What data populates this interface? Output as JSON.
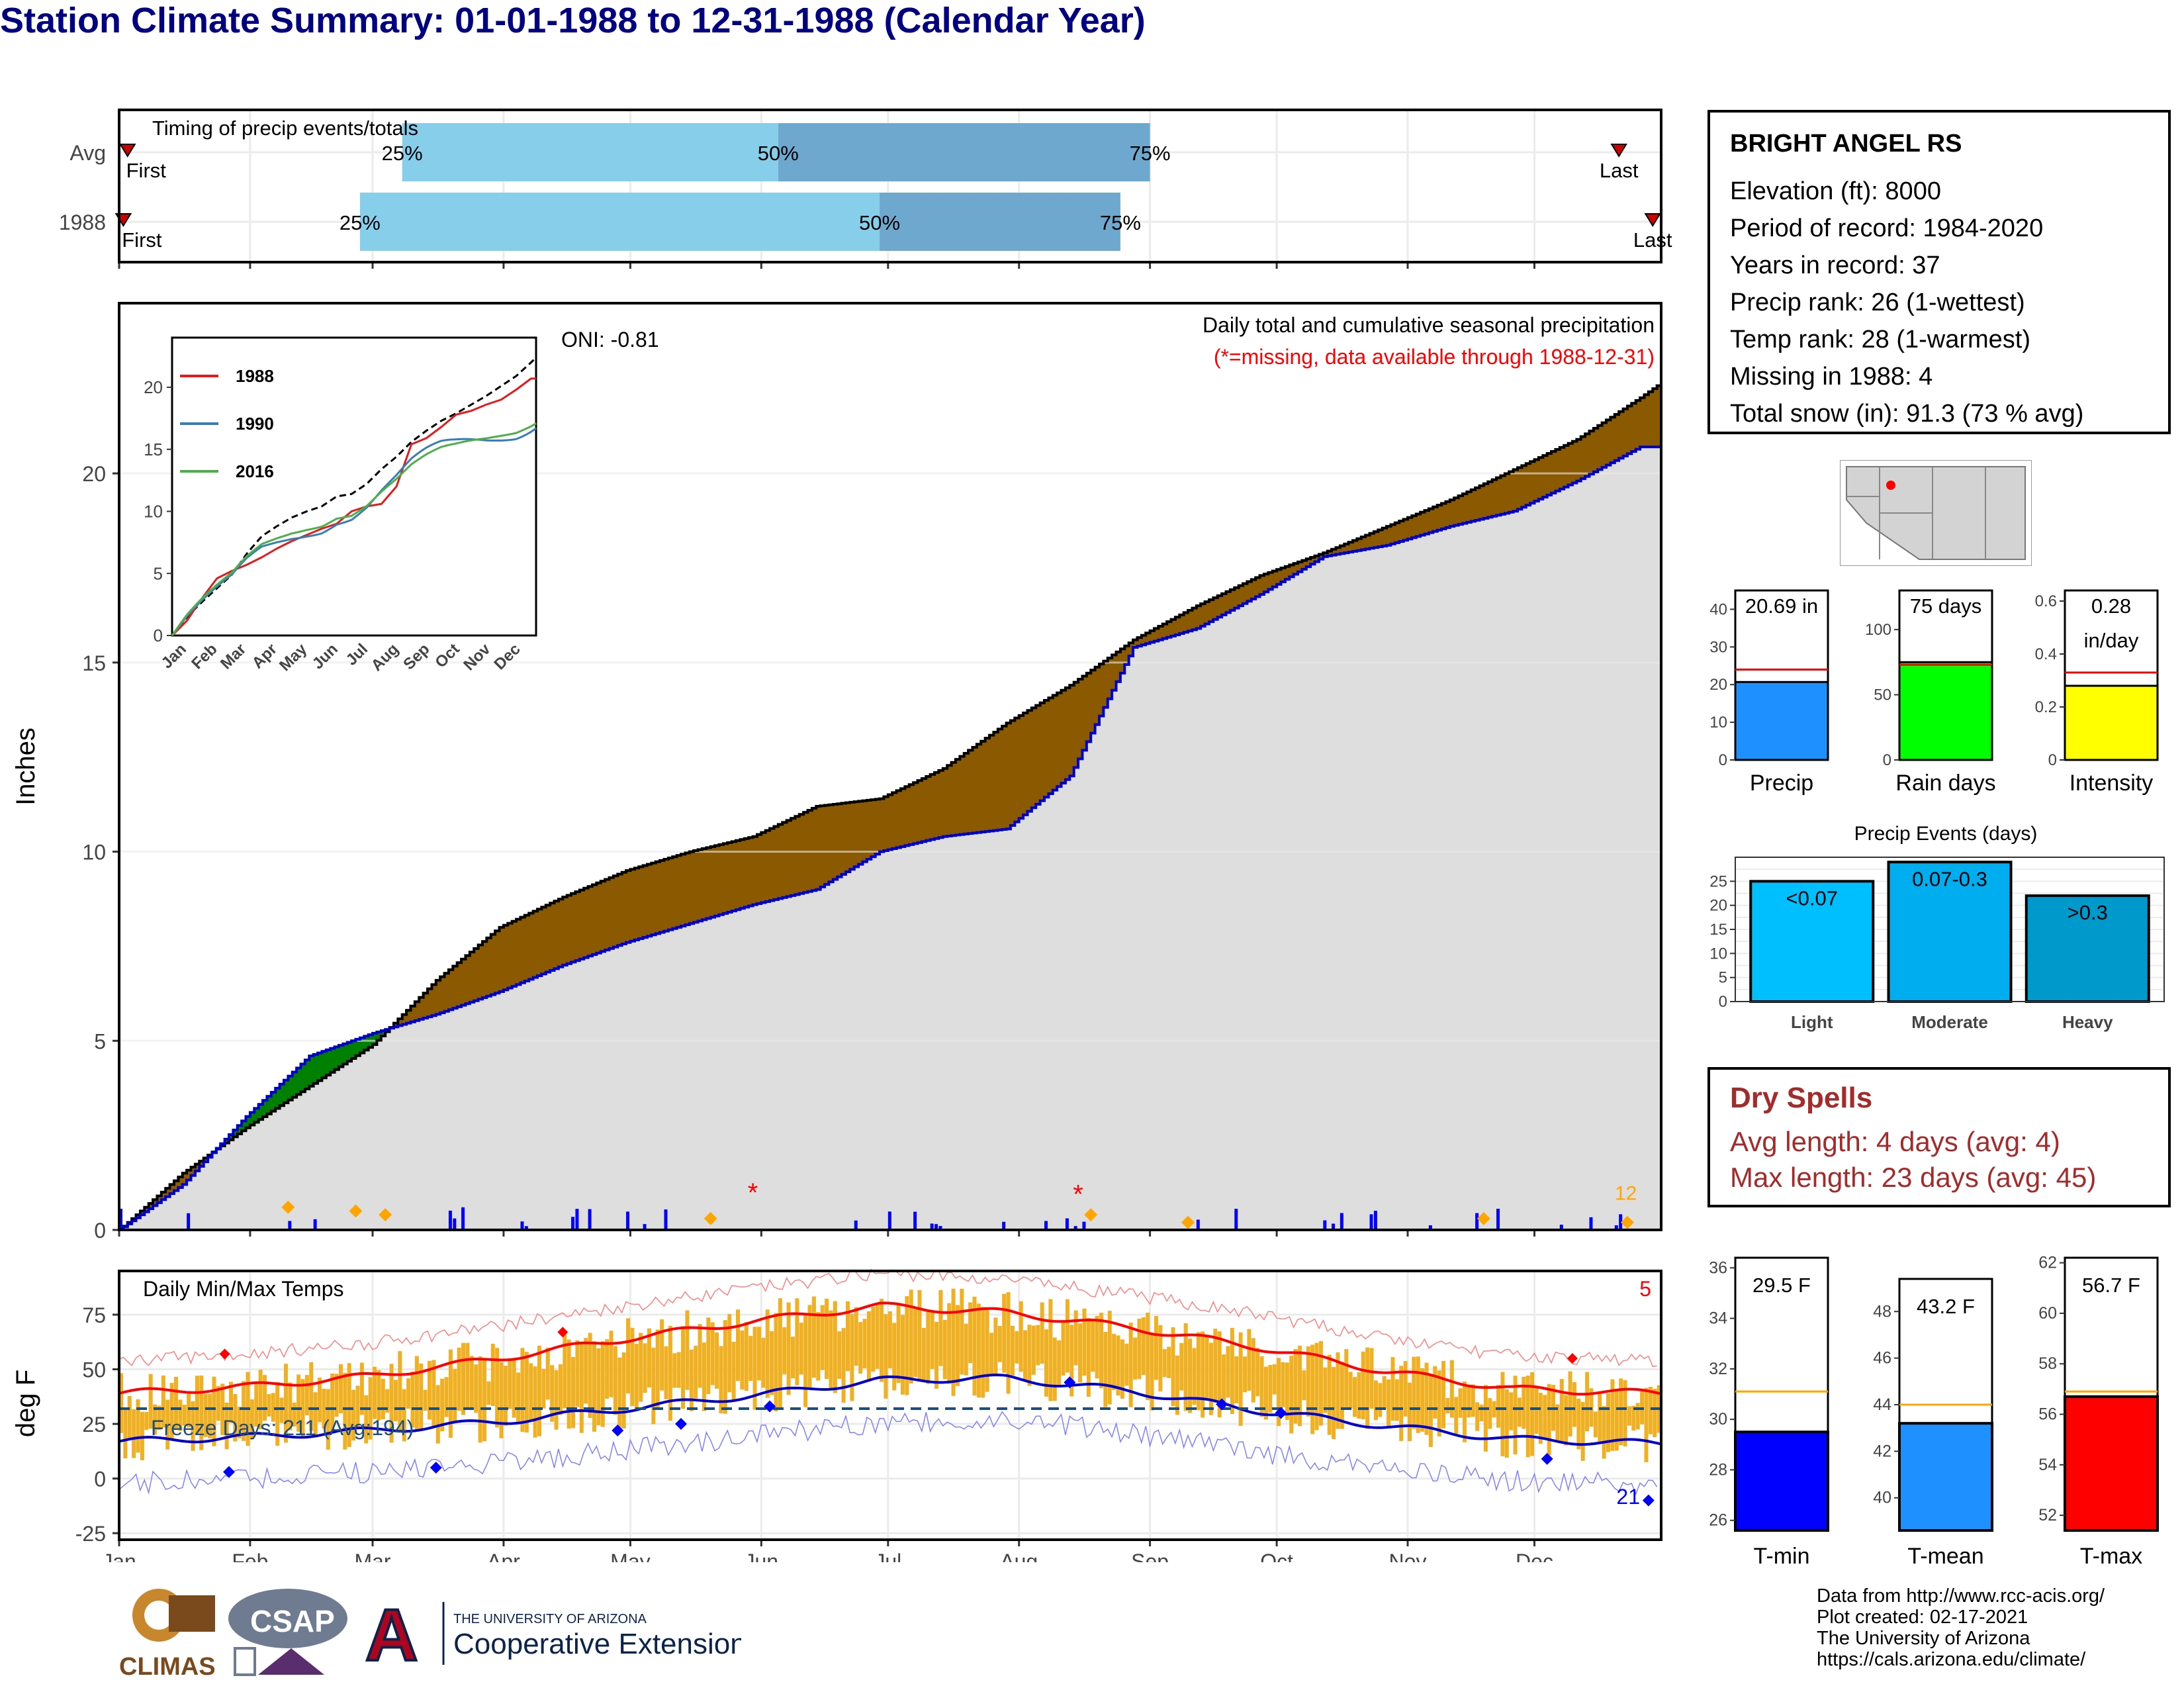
{
  "title": "Station Climate Summary: 01-01-1988 to 12-31-1988 (Calendar Year)",
  "timing": {
    "label": "Timing of precip events/totals",
    "rows": [
      {
        "name": "Avg",
        "first_label": "First",
        "last_label": "Last",
        "first_doy": 2,
        "last_doy": 355,
        "p25": 67,
        "p50": 156,
        "p75": 244
      },
      {
        "name": "1988",
        "first_label": "First",
        "last_label": "Last",
        "first_doy": 1,
        "last_doy": 363,
        "p25": 57,
        "p50": 180,
        "p75": 237
      }
    ],
    "pct_labels": [
      "25%",
      "50%",
      "75%"
    ]
  },
  "station": {
    "name": "BRIGHT ANGEL RS",
    "lines": [
      "Elevation (ft): 8000",
      "Period of record: 1984-2020",
      "Years in record: 37",
      "Precip rank: 26 (1-wettest)",
      "Temp rank: 28 (1-warmest)",
      "Missing in 1988: 4",
      "Total snow (in): 91.3 (73 % avg)"
    ]
  },
  "precip_panel": {
    "ylabel": "Inches",
    "oni": "ONI: -0.81",
    "caption1": "Daily total and cumulative seasonal precipitation",
    "caption2": "(*=missing, data available through 1988-12-31)",
    "yticks": [
      0,
      5,
      10,
      15,
      20
    ],
    "annotation": "12"
  },
  "inset": {
    "legend": [
      "1988",
      "1990",
      "2016"
    ],
    "colors": [
      "#e41a1c",
      "#377eb8",
      "#4daf4a"
    ],
    "yticks": [
      0,
      5,
      10,
      15,
      20
    ],
    "months": [
      "Jan",
      "Feb",
      "Mar",
      "Apr",
      "May",
      "Jun",
      "Jul",
      "Aug",
      "Sep",
      "Oct",
      "Nov",
      "Dec"
    ]
  },
  "temp_panel": {
    "ylabel": "deg F",
    "label": "Daily Min/Max Temps",
    "freeze": "Freeze Days: 211 (Avg:194)",
    "count_hot": "5",
    "count_cold": "21",
    "yticks": [
      -25,
      0,
      25,
      50,
      75
    ],
    "months": [
      "Jan",
      "Feb",
      "Mar",
      "Apr",
      "May",
      "Jun",
      "Jul",
      "Aug",
      "Sep",
      "Oct",
      "Nov",
      "Dec"
    ]
  },
  "summary_bars": [
    {
      "label": "Precip",
      "text": "20.69 in",
      "value": 20.69,
      "avg": 24.0,
      "ymax": 45,
      "yticks": [
        0,
        10,
        20,
        30,
        40
      ],
      "color": "#1e90ff"
    },
    {
      "label": "Rain days",
      "text": "75 days",
      "value": 75,
      "avg": 73,
      "ymax": 130,
      "yticks": [
        0,
        50,
        100
      ],
      "color": "#00ff00"
    },
    {
      "label": "Intensity",
      "text": "0.28\nin/day",
      "value": 0.28,
      "avg": 0.33,
      "ymax": 0.64,
      "yticks": [
        0.0,
        0.2,
        0.4,
        0.6
      ],
      "color": "#ffff00"
    }
  ],
  "events": {
    "title": "Precip Events (days)",
    "categories": [
      "Light",
      "Moderate",
      "Heavy"
    ],
    "labels": [
      "<0.07",
      "0.07-0.3",
      ">0.3"
    ],
    "values": [
      25,
      29,
      22
    ],
    "colors": [
      "#00bfff",
      "#00aeef",
      "#0099cc"
    ],
    "yticks": [
      0,
      5,
      10,
      15,
      20,
      25
    ]
  },
  "dry": {
    "title": "Dry Spells",
    "avg": "Avg length: 4 days (avg: 4)",
    "max": "Max length: 23 days (avg: 45)"
  },
  "temp_bars": [
    {
      "label": "T-min",
      "text": "29.5 F",
      "value": 29.5,
      "avg": 31.1,
      "ymin": 25.6,
      "ymax": 36.4,
      "yticks": [
        26,
        28,
        30,
        32,
        34,
        36
      ],
      "color": "#0000ff"
    },
    {
      "label": "T-mean",
      "text": "43.2 F",
      "value": 43.2,
      "avg": 44.0,
      "ymin": 38.6,
      "ymax": 49.4,
      "yticks": [
        40,
        42,
        44,
        46,
        48
      ],
      "color": "#1e90ff"
    },
    {
      "label": "T-max",
      "text": "56.7 F",
      "value": 56.7,
      "avg": 56.9,
      "ymin": 51.4,
      "ymax": 62.2,
      "yticks": [
        52,
        54,
        56,
        58,
        60,
        62
      ],
      "color": "#ff0000"
    }
  ],
  "credits": [
    "Data from http://www.rcc-acis.org/",
    "Plot created: 02-17-2021",
    "The University of Arizona",
    "https://cals.arizona.edu/climate/"
  ],
  "logos": {
    "climas": "CLIMAS",
    "csap": "CSAP",
    "ua_small": "THE UNIVERSITY OF ARIZONA",
    "ua_big": "Cooperative Extension",
    "ua_letter": "A"
  },
  "chart_data": [
    {
      "type": "line",
      "title": "Daily total and cumulative seasonal precipitation",
      "ylabel": "Inches",
      "ylim": [
        0,
        24.5
      ],
      "series": [
        {
          "name": "1988",
          "x": [
            0,
            15,
            30,
            45,
            60,
            75,
            90,
            105,
            120,
            135,
            150,
            165,
            180,
            195,
            210,
            225,
            240,
            255,
            270,
            285,
            300,
            315,
            330,
            345,
            360,
            365
          ],
          "values": [
            0,
            1.2,
            3.0,
            4.6,
            5.2,
            5.7,
            6.3,
            7.0,
            7.6,
            8.1,
            8.6,
            9.0,
            10.0,
            10.4,
            10.6,
            12.0,
            15.4,
            15.9,
            16.8,
            17.8,
            18.1,
            18.6,
            19.0,
            19.8,
            20.7,
            20.7
          ]
        },
        {
          "name": "Avg",
          "x": [
            0,
            15,
            30,
            45,
            60,
            75,
            90,
            105,
            120,
            135,
            150,
            165,
            180,
            195,
            210,
            225,
            240,
            255,
            270,
            285,
            300,
            315,
            330,
            345,
            360,
            365
          ],
          "values": [
            0,
            1.5,
            2.7,
            3.8,
            4.9,
            6.6,
            8.0,
            8.8,
            9.5,
            10.0,
            10.4,
            11.2,
            11.4,
            12.2,
            13.4,
            14.4,
            15.6,
            16.5,
            17.3,
            17.9,
            18.6,
            19.3,
            20.1,
            20.9,
            22.0,
            22.4
          ]
        }
      ]
    },
    {
      "type": "line",
      "title": "Daily Min/Max Temps",
      "ylabel": "deg F",
      "ylim": [
        -28,
        95
      ],
      "series": [
        {
          "name": "avg_max",
          "x": [
            0,
            30,
            60,
            90,
            120,
            150,
            180,
            210,
            240,
            270,
            300,
            330,
            365
          ],
          "values": [
            39,
            42,
            47,
            55,
            64,
            72,
            79,
            76,
            69,
            60,
            49,
            41,
            39
          ]
        },
        {
          "name": "avg_min",
          "x": [
            0,
            30,
            60,
            90,
            120,
            150,
            180,
            210,
            240,
            270,
            300,
            330,
            365
          ],
          "values": [
            17,
            19,
            22,
            26,
            32,
            38,
            45,
            46,
            40,
            31,
            24,
            18,
            16
          ]
        }
      ]
    }
  ]
}
